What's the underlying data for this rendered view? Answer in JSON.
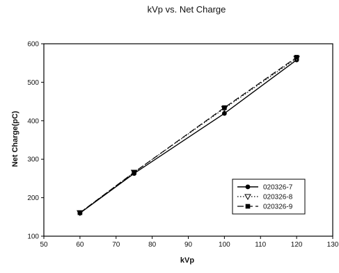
{
  "chart_data": {
    "type": "line",
    "title": "kVp  vs. Net Charge",
    "xlabel": "kVp",
    "ylabel": "Net Charge(pC)",
    "xlim": [
      50,
      130
    ],
    "ylim": [
      100,
      600
    ],
    "xticks": [
      50,
      60,
      70,
      80,
      90,
      100,
      110,
      120,
      130
    ],
    "yticks": [
      100,
      200,
      300,
      400,
      500,
      600
    ],
    "grid": false,
    "legend_position": "bottom-right",
    "series": [
      {
        "name": "020326-7",
        "marker": "circle",
        "line_style": "solid",
        "x": [
          60,
          75,
          100,
          120
        ],
        "y": [
          160,
          263,
          419,
          558
        ]
      },
      {
        "name": "020326-8",
        "marker": "triangle",
        "line_style": "dotted",
        "x": [
          60,
          75,
          100,
          120
        ],
        "y": [
          161,
          266,
          432,
          562
        ]
      },
      {
        "name": "020326-9",
        "marker": "square",
        "line_style": "dashed",
        "x": [
          60,
          75,
          100,
          120
        ],
        "y": [
          161,
          266,
          434,
          565
        ]
      }
    ]
  }
}
